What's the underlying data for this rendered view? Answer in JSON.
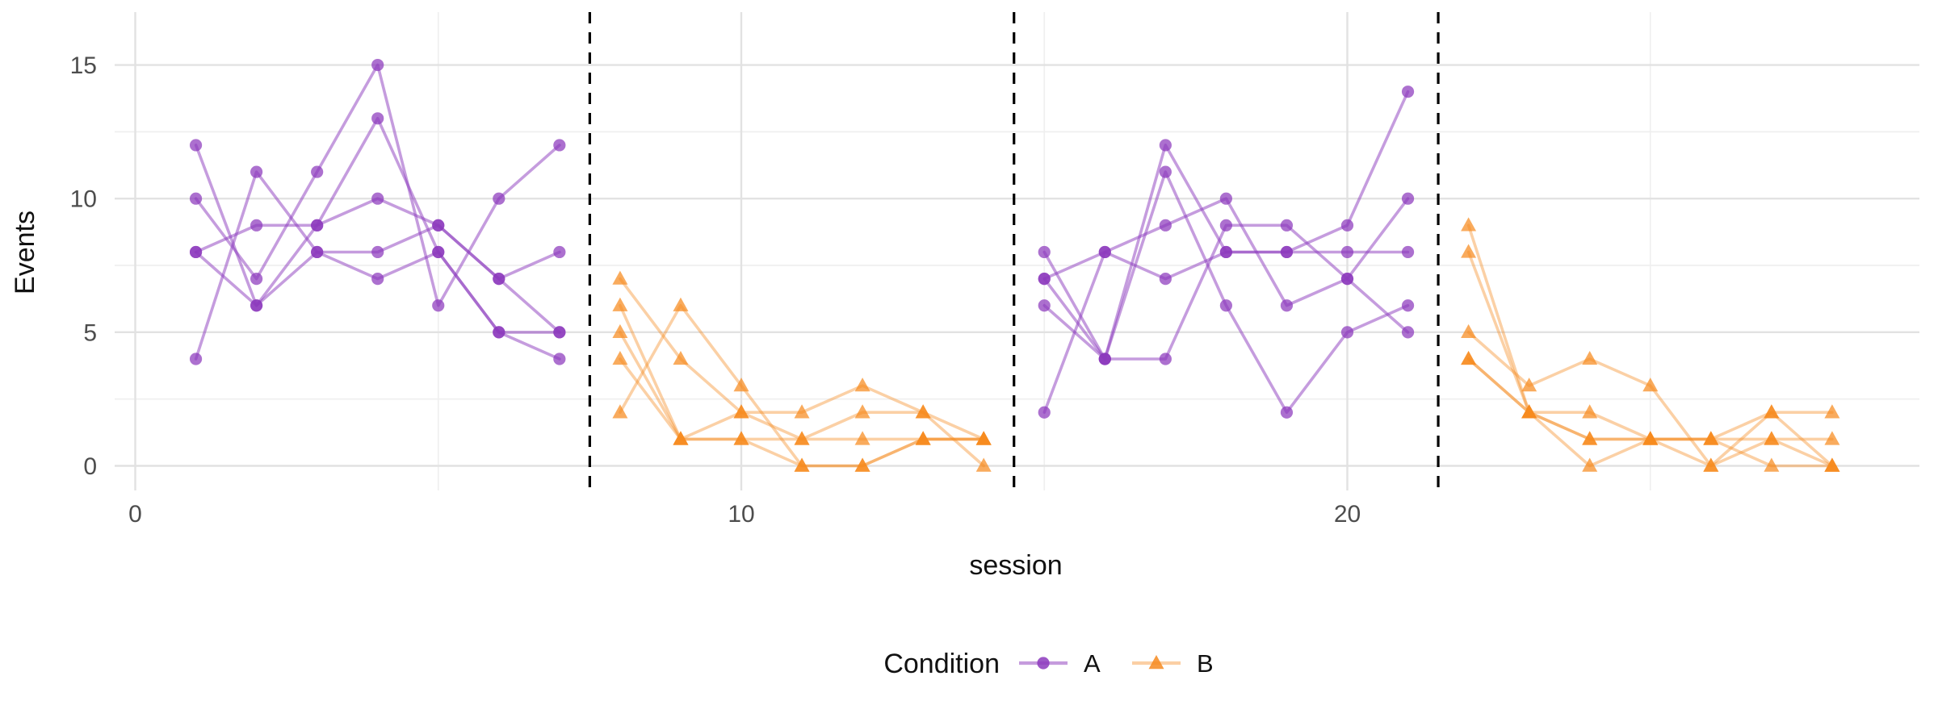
{
  "chart_data": {
    "type": "line",
    "title": "",
    "xlabel": "session",
    "ylabel": "Events",
    "x_ticks": [
      0,
      10,
      20
    ],
    "x_minor_ticks": [
      5,
      15,
      25
    ],
    "y_ticks": [
      0,
      5,
      10,
      15
    ],
    "y_minor_ticks": [
      2.5,
      7.5,
      12.5
    ],
    "xlim": [
      -0.4,
      29.4
    ],
    "ylim": [
      -0.75,
      15.75
    ],
    "grid": "on",
    "legend_position": "bottom-center",
    "phase_boundaries_x": [
      7.5,
      14.5,
      21.5
    ],
    "phases": [
      {
        "condition": "A",
        "first_session": 1,
        "last_session": 7
      },
      {
        "condition": "B",
        "first_session": 8,
        "last_session": 14
      },
      {
        "condition": "A",
        "first_session": 15,
        "last_session": 21
      },
      {
        "condition": "B",
        "first_session": 22,
        "last_session": 28
      }
    ],
    "conditions": {
      "A": {
        "label": "A",
        "color": "#8C39BD",
        "marker": "circle",
        "line_opacity": 0.5,
        "marker_opacity": 0.72
      },
      "B": {
        "label": "B",
        "color": "#F68A1F",
        "marker": "triangle",
        "line_opacity": 0.4,
        "marker_opacity": 0.72
      }
    },
    "x": [
      1,
      2,
      3,
      4,
      5,
      6,
      7,
      8,
      9,
      10,
      11,
      12,
      13,
      14,
      15,
      16,
      17,
      18,
      19,
      20,
      21,
      22,
      23,
      24,
      25,
      26,
      27,
      28
    ],
    "series": [
      {
        "name": "case 1",
        "values": [
          12,
          6,
          9,
          10,
          9,
          7,
          5,
          7,
          4,
          2,
          2,
          3,
          2,
          1,
          8,
          4,
          12,
          8,
          8,
          8,
          8,
          9,
          2,
          2,
          1,
          1,
          2,
          2
        ]
      },
      {
        "name": "case 2",
        "values": [
          10,
          7,
          11,
          15,
          6,
          10,
          12,
          2,
          6,
          3,
          0,
          0,
          1,
          1,
          7,
          8,
          9,
          10,
          6,
          7,
          10,
          8,
          2,
          1,
          1,
          1,
          1,
          1
        ]
      },
      {
        "name": "case 3",
        "values": [
          8,
          9,
          9,
          13,
          8,
          5,
          5,
          6,
          1,
          2,
          1,
          2,
          2,
          0,
          7,
          4,
          11,
          6,
          2,
          5,
          6,
          5,
          3,
          4,
          3,
          0,
          2,
          0
        ]
      },
      {
        "name": "case 4",
        "values": [
          8,
          6,
          8,
          7,
          8,
          5,
          4,
          5,
          1,
          1,
          1,
          1,
          1,
          1,
          6,
          4,
          4,
          9,
          9,
          7,
          5,
          4,
          2,
          1,
          1,
          1,
          0,
          0
        ]
      },
      {
        "name": "case 5",
        "values": [
          4,
          11,
          8,
          8,
          9,
          7,
          8,
          4,
          1,
          1,
          0,
          0,
          1,
          1,
          2,
          8,
          7,
          8,
          8,
          9,
          14,
          4,
          2,
          0,
          1,
          0,
          1,
          0
        ]
      }
    ],
    "legend": {
      "title": "Condition",
      "entries": [
        {
          "label": "A",
          "condition": "A"
        },
        {
          "label": "B",
          "condition": "B"
        }
      ]
    },
    "style_colors": {
      "background": "#FFFFFF",
      "grid_major": "#E2E2E2",
      "grid_minor": "#EFEFEF",
      "phase_line": "#000000",
      "tick_text": "#4D4D4D",
      "title_text": "#111111"
    }
  }
}
